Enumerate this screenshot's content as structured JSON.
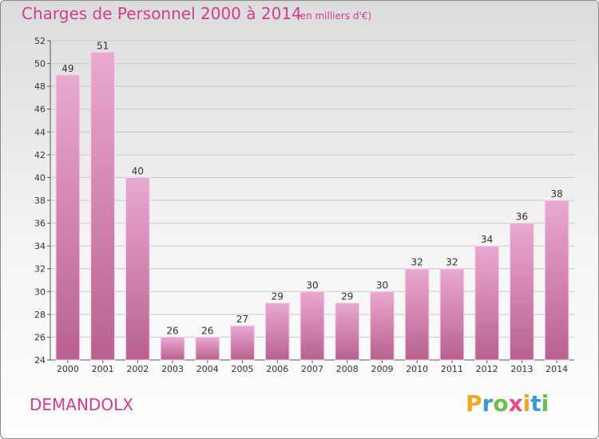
{
  "header": {
    "title": "Charges de Personnel 2000 à 2014",
    "subtitle": "(en milliers d'€)"
  },
  "commune": "DEMANDOLX",
  "logo": {
    "text": "Proxiti",
    "letters": [
      {
        "ch": "P",
        "color": "#f5a623"
      },
      {
        "ch": "r",
        "color": "#3a9ad9"
      },
      {
        "ch": "o",
        "color": "#6cc04a"
      },
      {
        "ch": "x",
        "color": "#e74c8b"
      },
      {
        "ch": "i",
        "color": "#f5a623"
      },
      {
        "ch": "t",
        "color": "#3a9ad9"
      },
      {
        "ch": "i",
        "color": "#6cc04a"
      }
    ]
  },
  "colors": {
    "accent": "#d33c8f",
    "bar_top": "#e9a9d0",
    "bar_bottom": "#b9618f"
  },
  "chart_data": {
    "type": "bar",
    "categories": [
      "2000",
      "2001",
      "2002",
      "2003",
      "2004",
      "2005",
      "2006",
      "2007",
      "2008",
      "2009",
      "2010",
      "2011",
      "2012",
      "2013",
      "2014"
    ],
    "values": [
      49,
      51,
      40,
      26,
      26,
      27,
      29,
      30,
      29,
      30,
      32,
      32,
      34,
      36,
      38
    ],
    "title": "Charges de Personnel 2000 à 2014",
    "ylim": [
      24,
      52
    ],
    "yticks": [
      24,
      26,
      28,
      30,
      32,
      34,
      36,
      38,
      40,
      42,
      44,
      46,
      48,
      50,
      52
    ],
    "grid": true
  }
}
